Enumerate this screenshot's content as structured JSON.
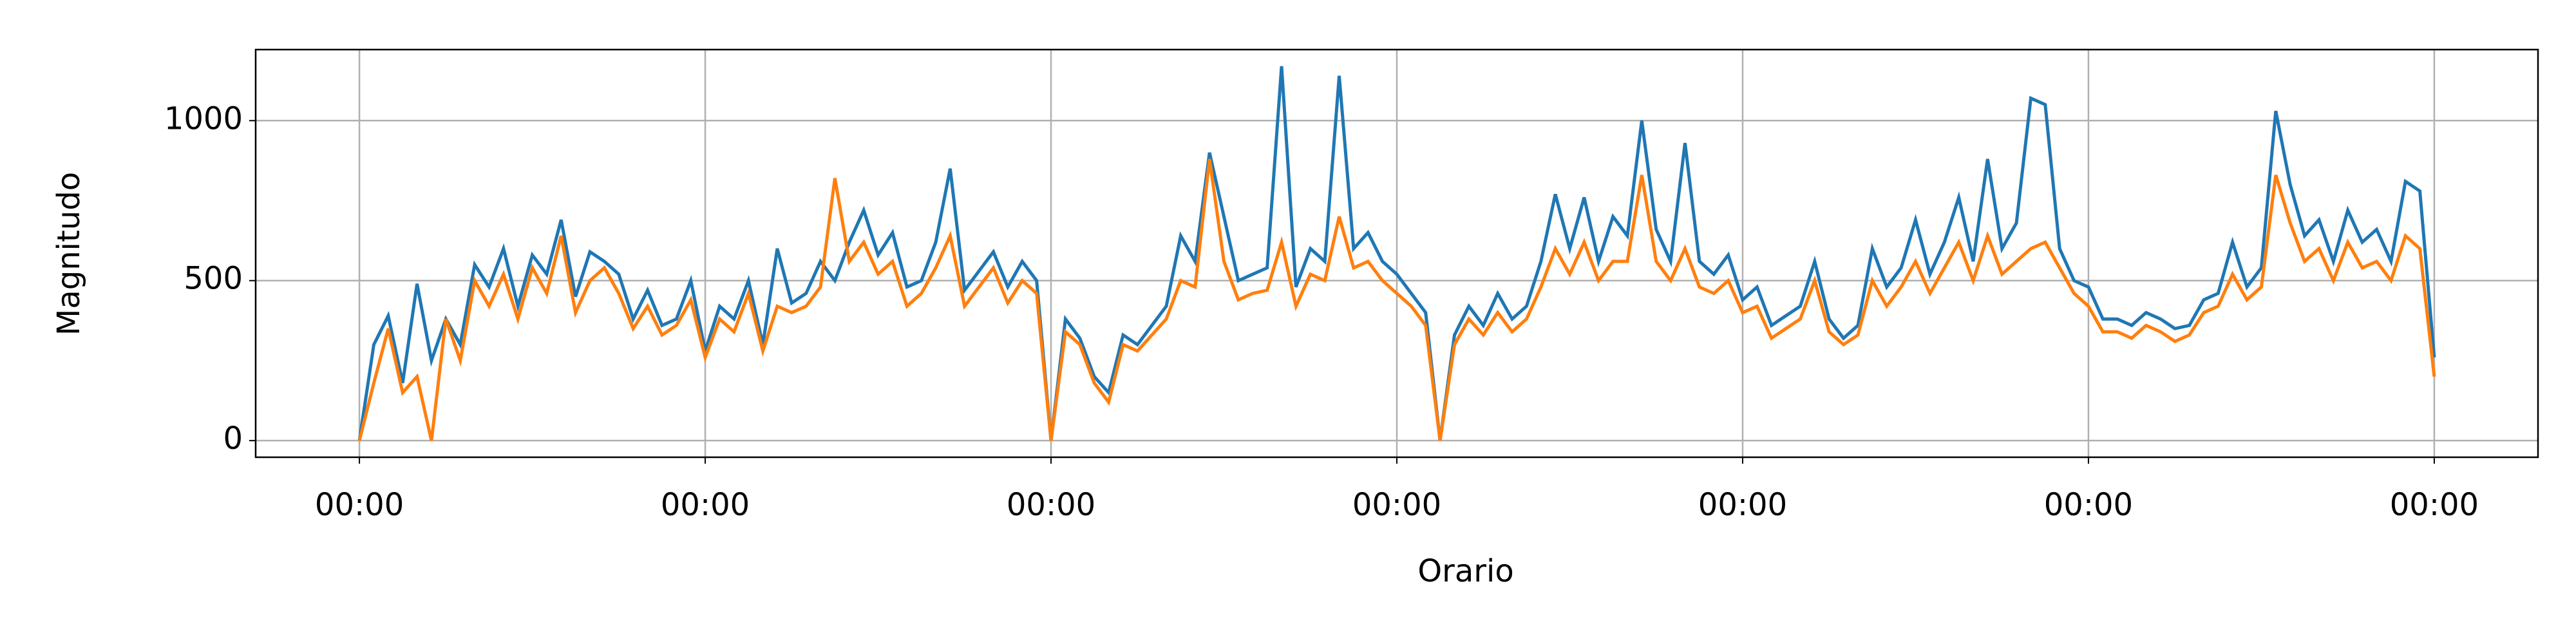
{
  "chart_data": {
    "type": "line",
    "xlabel": "Orario",
    "ylabel": "Magnitudo",
    "x": [
      0,
      1,
      2,
      3,
      4,
      5,
      6,
      7,
      8,
      9,
      10,
      11,
      12,
      13,
      14,
      15,
      16,
      17,
      18,
      19,
      20,
      21,
      22,
      23,
      24,
      25,
      26,
      27,
      28,
      29,
      30,
      31,
      32,
      33,
      34,
      35,
      36,
      37,
      38,
      39,
      40,
      41,
      42,
      43,
      44,
      45,
      46,
      47,
      48,
      49,
      50,
      51,
      52,
      53,
      54,
      55,
      56,
      57,
      58,
      59,
      60,
      61,
      62,
      63,
      64,
      65,
      66,
      67,
      68,
      69,
      70,
      71,
      72,
      73,
      74,
      75,
      76,
      77,
      78,
      79,
      80,
      81,
      82,
      83,
      84,
      85,
      86,
      87,
      88,
      89,
      90,
      91,
      92,
      93,
      94,
      95,
      96,
      97,
      98,
      99,
      100,
      101,
      102,
      103,
      104,
      105,
      106,
      107,
      108,
      109,
      110,
      111,
      112,
      113,
      114,
      115,
      116,
      117,
      118,
      119,
      120,
      121,
      122,
      123,
      124,
      125,
      126,
      127,
      128,
      129,
      130,
      131,
      132,
      133,
      134,
      135,
      136,
      137,
      138,
      139,
      140,
      141,
      142,
      143,
      144
    ],
    "series": [
      {
        "color": "#1f77b4",
        "values": [
          0,
          300,
          390,
          180,
          490,
          250,
          380,
          300,
          550,
          480,
          600,
          420,
          580,
          520,
          690,
          450,
          590,
          560,
          520,
          380,
          470,
          360,
          380,
          500,
          280,
          420,
          380,
          500,
          300,
          600,
          430,
          460,
          560,
          500,
          620,
          720,
          580,
          650,
          480,
          500,
          620,
          850,
          470,
          530,
          590,
          480,
          560,
          500,
          0,
          380,
          320,
          200,
          150,
          330,
          300,
          360,
          420,
          640,
          560,
          900,
          700,
          500,
          520,
          540,
          1170,
          480,
          600,
          560,
          1140,
          600,
          650,
          560,
          520,
          460,
          400,
          0,
          330,
          420,
          360,
          460,
          380,
          420,
          560,
          770,
          600,
          760,
          560,
          700,
          640,
          1000,
          660,
          560,
          930,
          560,
          520,
          580,
          440,
          480,
          360,
          390,
          420,
          560,
          380,
          320,
          360,
          600,
          480,
          540,
          690,
          520,
          620,
          760,
          560,
          880,
          600,
          680,
          1070,
          1050,
          600,
          500,
          480,
          380,
          380,
          360,
          400,
          380,
          350,
          360,
          440,
          460,
          620,
          480,
          540,
          1030,
          800,
          640,
          690,
          560,
          720,
          620,
          660,
          560,
          810,
          780,
          260
        ]
      },
      {
        "color": "#ff7f0e",
        "values": [
          0,
          180,
          350,
          150,
          200,
          0,
          380,
          250,
          500,
          420,
          520,
          380,
          540,
          460,
          640,
          400,
          500,
          540,
          460,
          350,
          420,
          330,
          360,
          440,
          260,
          380,
          340,
          460,
          280,
          420,
          400,
          420,
          480,
          820,
          560,
          620,
          520,
          560,
          420,
          460,
          540,
          640,
          420,
          480,
          540,
          430,
          500,
          460,
          0,
          340,
          300,
          180,
          120,
          300,
          280,
          330,
          380,
          500,
          480,
          880,
          560,
          440,
          460,
          470,
          620,
          420,
          520,
          500,
          700,
          540,
          560,
          500,
          460,
          420,
          360,
          0,
          300,
          380,
          330,
          400,
          340,
          380,
          480,
          600,
          520,
          620,
          500,
          560,
          560,
          830,
          560,
          500,
          600,
          480,
          460,
          500,
          400,
          420,
          320,
          350,
          380,
          500,
          340,
          300,
          330,
          500,
          420,
          480,
          560,
          460,
          540,
          620,
          500,
          640,
          520,
          560,
          600,
          620,
          540,
          460,
          420,
          340,
          340,
          320,
          360,
          340,
          310,
          330,
          400,
          420,
          520,
          440,
          480,
          830,
          680,
          560,
          600,
          500,
          620,
          540,
          560,
          500,
          640,
          600,
          200
        ]
      }
    ],
    "xlim": [
      -7.2,
      151.2
    ],
    "xticks": [
      {
        "value": 0,
        "label": "00:00"
      },
      {
        "value": 24,
        "label": "00:00"
      },
      {
        "value": 48,
        "label": "00:00"
      },
      {
        "value": 72,
        "label": "00:00"
      },
      {
        "value": 96,
        "label": "00:00"
      },
      {
        "value": 120,
        "label": "00:00"
      },
      {
        "value": 144,
        "label": "00:00"
      }
    ],
    "ylim": [
      -52,
      1222
    ],
    "yticks": [
      0,
      500,
      1000
    ],
    "grid": true
  }
}
